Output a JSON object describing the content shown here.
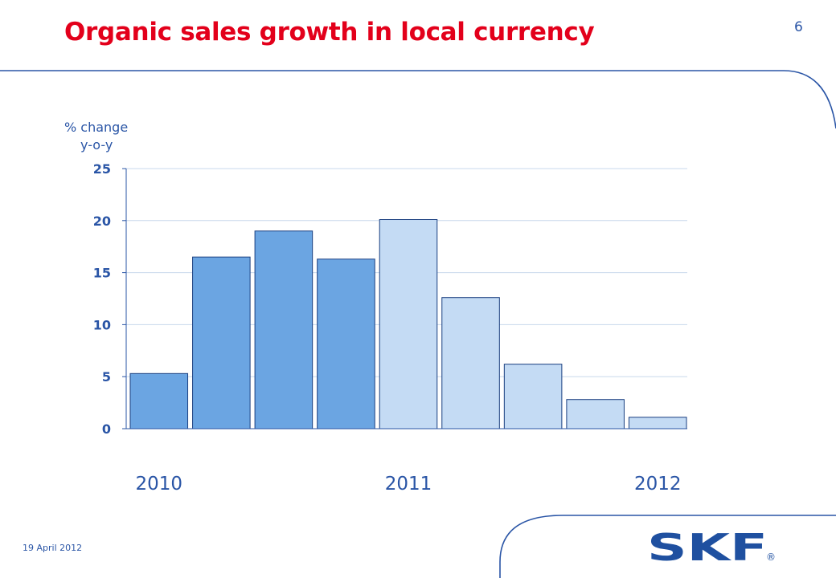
{
  "header": {
    "title": "Organic sales growth in local currency",
    "page_number": "6"
  },
  "footer": {
    "date": "19 April 2012",
    "logo_text": "SKF",
    "logo_mark": "®"
  },
  "colors": {
    "accent": "#e3001b",
    "dark_bar": "#6ba5e2",
    "light_bar": "#c4dbf4",
    "text_blue": "#2a55a6"
  },
  "chart_data": {
    "type": "bar",
    "title": "",
    "ylabel": "% change y-o-y",
    "ylabel_lines": [
      "% change",
      "y-o-y"
    ],
    "ylim": [
      0,
      25
    ],
    "yticks": [
      0,
      5,
      10,
      15,
      20,
      25
    ],
    "grid": true,
    "values": [
      5.3,
      16.5,
      19.0,
      16.3,
      20.1,
      12.6,
      6.2,
      2.8,
      1.1
    ],
    "shades": [
      "dark",
      "dark",
      "dark",
      "dark",
      "light",
      "light",
      "light",
      "light",
      "light"
    ],
    "year_labels": [
      {
        "label": "2010",
        "bar_index": 0
      },
      {
        "label": "2011",
        "bar_index": 4
      },
      {
        "label": "2012",
        "bar_index": 8
      }
    ]
  }
}
